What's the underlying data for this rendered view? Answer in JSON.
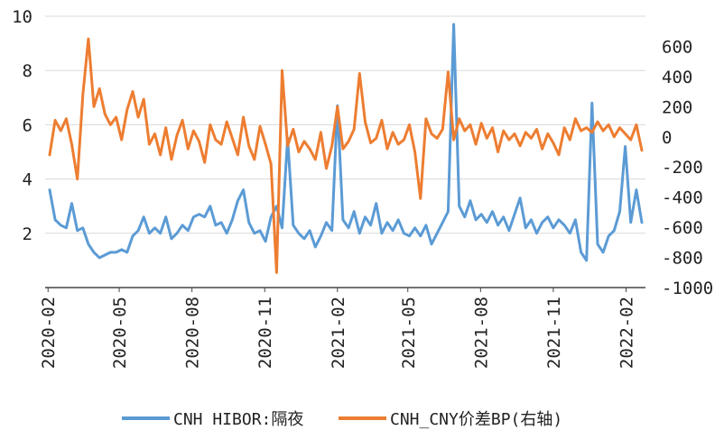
{
  "chart_data": {
    "type": "line",
    "title": "",
    "xlabel": "",
    "ylabel": "",
    "x_ticks": [
      "2020-02",
      "2020-05",
      "2020-08",
      "2020-11",
      "2021-02",
      "2021-05",
      "2021-08",
      "2021-11",
      "2022-02"
    ],
    "y_left": {
      "range": [
        0,
        10
      ],
      "ticks": [
        "10",
        "8",
        "6",
        "4",
        "2"
      ]
    },
    "y_right": {
      "range": [
        -1000,
        800
      ],
      "ticks": [
        "600",
        "400",
        "200",
        "0",
        "-200",
        "-400",
        "-600",
        "-800",
        "-1000"
      ]
    },
    "grid": true,
    "legend": "bottom",
    "series": [
      {
        "name": "CNH HIBOR:隔夜",
        "axis": "left",
        "color": "#5B9BD5",
        "values": [
          [
            "2020-02-03",
            3.6
          ],
          [
            "2020-02-10",
            2.5
          ],
          [
            "2020-02-17",
            2.3
          ],
          [
            "2020-02-24",
            2.2
          ],
          [
            "2020-03-02",
            3.1
          ],
          [
            "2020-03-09",
            2.1
          ],
          [
            "2020-03-16",
            2.2
          ],
          [
            "2020-03-23",
            1.6
          ],
          [
            "2020-03-30",
            1.3
          ],
          [
            "2020-04-06",
            1.1
          ],
          [
            "2020-04-13",
            1.2
          ],
          [
            "2020-04-20",
            1.3
          ],
          [
            "2020-04-27",
            1.3
          ],
          [
            "2020-05-04",
            1.4
          ],
          [
            "2020-05-11",
            1.3
          ],
          [
            "2020-05-18",
            1.9
          ],
          [
            "2020-05-25",
            2.1
          ],
          [
            "2020-06-01",
            2.6
          ],
          [
            "2020-06-08",
            2.0
          ],
          [
            "2020-06-15",
            2.2
          ],
          [
            "2020-06-22",
            2.0
          ],
          [
            "2020-06-29",
            2.6
          ],
          [
            "2020-07-06",
            1.8
          ],
          [
            "2020-07-13",
            2.0
          ],
          [
            "2020-07-20",
            2.3
          ],
          [
            "2020-07-27",
            2.1
          ],
          [
            "2020-08-03",
            2.6
          ],
          [
            "2020-08-10",
            2.7
          ],
          [
            "2020-08-17",
            2.6
          ],
          [
            "2020-08-24",
            3.0
          ],
          [
            "2020-08-31",
            2.3
          ],
          [
            "2020-09-07",
            2.4
          ],
          [
            "2020-09-14",
            2.0
          ],
          [
            "2020-09-21",
            2.5
          ],
          [
            "2020-09-28",
            3.2
          ],
          [
            "2020-10-05",
            3.6
          ],
          [
            "2020-10-12",
            2.4
          ],
          [
            "2020-10-19",
            2.0
          ],
          [
            "2020-10-26",
            2.1
          ],
          [
            "2020-11-02",
            1.7
          ],
          [
            "2020-11-09",
            2.6
          ],
          [
            "2020-11-16",
            3.0
          ],
          [
            "2020-11-23",
            2.2
          ],
          [
            "2020-11-30",
            5.5
          ],
          [
            "2020-12-07",
            2.3
          ],
          [
            "2020-12-14",
            2.0
          ],
          [
            "2020-12-21",
            1.8
          ],
          [
            "2020-12-28",
            2.1
          ],
          [
            "2021-01-04",
            1.5
          ],
          [
            "2021-01-11",
            1.9
          ],
          [
            "2021-01-18",
            2.4
          ],
          [
            "2021-01-25",
            2.1
          ],
          [
            "2021-02-01",
            6.7
          ],
          [
            "2021-02-08",
            2.5
          ],
          [
            "2021-02-15",
            2.2
          ],
          [
            "2021-02-22",
            2.8
          ],
          [
            "2021-03-01",
            2.0
          ],
          [
            "2021-03-08",
            2.6
          ],
          [
            "2021-03-15",
            2.3
          ],
          [
            "2021-03-22",
            3.1
          ],
          [
            "2021-03-29",
            2.0
          ],
          [
            "2021-04-05",
            2.4
          ],
          [
            "2021-04-12",
            2.1
          ],
          [
            "2021-04-19",
            2.5
          ],
          [
            "2021-04-26",
            2.0
          ],
          [
            "2021-05-03",
            1.9
          ],
          [
            "2021-05-10",
            2.2
          ],
          [
            "2021-05-17",
            1.9
          ],
          [
            "2021-05-24",
            2.3
          ],
          [
            "2021-05-31",
            1.6
          ],
          [
            "2021-06-07",
            2.0
          ],
          [
            "2021-06-14",
            2.4
          ],
          [
            "2021-06-21",
            2.8
          ],
          [
            "2021-06-28",
            9.7
          ],
          [
            "2021-07-05",
            3.0
          ],
          [
            "2021-07-12",
            2.6
          ],
          [
            "2021-07-19",
            3.2
          ],
          [
            "2021-07-26",
            2.5
          ],
          [
            "2021-08-02",
            2.7
          ],
          [
            "2021-08-09",
            2.4
          ],
          [
            "2021-08-16",
            2.8
          ],
          [
            "2021-08-23",
            2.3
          ],
          [
            "2021-08-30",
            2.6
          ],
          [
            "2021-09-06",
            2.1
          ],
          [
            "2021-09-13",
            2.7
          ],
          [
            "2021-09-20",
            3.3
          ],
          [
            "2021-09-27",
            2.2
          ],
          [
            "2021-10-04",
            2.5
          ],
          [
            "2021-10-11",
            2.0
          ],
          [
            "2021-10-18",
            2.4
          ],
          [
            "2021-10-25",
            2.6
          ],
          [
            "2021-11-01",
            2.2
          ],
          [
            "2021-11-08",
            2.5
          ],
          [
            "2021-11-15",
            2.3
          ],
          [
            "2021-11-22",
            2.0
          ],
          [
            "2021-11-29",
            2.5
          ],
          [
            "2021-12-06",
            1.3
          ],
          [
            "2021-12-13",
            1.0
          ],
          [
            "2021-12-20",
            6.8
          ],
          [
            "2021-12-27",
            1.6
          ],
          [
            "2022-01-03",
            1.3
          ],
          [
            "2022-01-10",
            1.9
          ],
          [
            "2022-01-17",
            2.1
          ],
          [
            "2022-01-24",
            2.8
          ],
          [
            "2022-01-31",
            5.2
          ],
          [
            "2022-02-07",
            2.4
          ],
          [
            "2022-02-14",
            3.6
          ],
          [
            "2022-02-21",
            2.4
          ]
        ]
      },
      {
        "name": "CNH_CNY价差BP(右轴)",
        "axis": "right",
        "color": "#ED7D31",
        "values": [
          [
            "2020-02-03",
            -120
          ],
          [
            "2020-02-10",
            110
          ],
          [
            "2020-02-17",
            40
          ],
          [
            "2020-02-24",
            120
          ],
          [
            "2020-03-02",
            -50
          ],
          [
            "2020-03-09",
            -280
          ],
          [
            "2020-03-16",
            280
          ],
          [
            "2020-03-23",
            650
          ],
          [
            "2020-03-30",
            200
          ],
          [
            "2020-04-06",
            320
          ],
          [
            "2020-04-13",
            150
          ],
          [
            "2020-04-20",
            80
          ],
          [
            "2020-04-27",
            130
          ],
          [
            "2020-05-04",
            -20
          ],
          [
            "2020-05-11",
            180
          ],
          [
            "2020-05-18",
            300
          ],
          [
            "2020-05-25",
            130
          ],
          [
            "2020-06-01",
            250
          ],
          [
            "2020-06-08",
            -50
          ],
          [
            "2020-06-15",
            20
          ],
          [
            "2020-06-22",
            -120
          ],
          [
            "2020-06-29",
            60
          ],
          [
            "2020-07-06",
            -150
          ],
          [
            "2020-07-13",
            10
          ],
          [
            "2020-07-20",
            110
          ],
          [
            "2020-07-27",
            -80
          ],
          [
            "2020-08-03",
            40
          ],
          [
            "2020-08-10",
            -30
          ],
          [
            "2020-08-17",
            -170
          ],
          [
            "2020-08-24",
            80
          ],
          [
            "2020-08-31",
            -20
          ],
          [
            "2020-09-07",
            -50
          ],
          [
            "2020-09-14",
            100
          ],
          [
            "2020-09-21",
            -10
          ],
          [
            "2020-09-28",
            -120
          ],
          [
            "2020-10-05",
            130
          ],
          [
            "2020-10-12",
            -60
          ],
          [
            "2020-10-19",
            -150
          ],
          [
            "2020-10-26",
            70
          ],
          [
            "2020-11-02",
            -50
          ],
          [
            "2020-11-09",
            -180
          ],
          [
            "2020-11-16",
            -900
          ],
          [
            "2020-11-23",
            440
          ],
          [
            "2020-11-30",
            -60
          ],
          [
            "2020-12-07",
            50
          ],
          [
            "2020-12-14",
            -100
          ],
          [
            "2020-12-21",
            -30
          ],
          [
            "2020-12-28",
            -80
          ],
          [
            "2021-01-04",
            -150
          ],
          [
            "2021-01-11",
            30
          ],
          [
            "2021-01-18",
            -210
          ],
          [
            "2021-01-25",
            -60
          ],
          [
            "2021-02-01",
            200
          ],
          [
            "2021-02-08",
            -80
          ],
          [
            "2021-02-15",
            -30
          ],
          [
            "2021-02-22",
            50
          ],
          [
            "2021-03-01",
            420
          ],
          [
            "2021-03-08",
            100
          ],
          [
            "2021-03-15",
            -40
          ],
          [
            "2021-03-22",
            -10
          ],
          [
            "2021-03-29",
            110
          ],
          [
            "2021-04-05",
            -80
          ],
          [
            "2021-04-12",
            30
          ],
          [
            "2021-04-19",
            -50
          ],
          [
            "2021-04-26",
            -20
          ],
          [
            "2021-05-03",
            80
          ],
          [
            "2021-05-10",
            -100
          ],
          [
            "2021-05-17",
            -410
          ],
          [
            "2021-05-24",
            120
          ],
          [
            "2021-05-31",
            20
          ],
          [
            "2021-06-07",
            -10
          ],
          [
            "2021-06-14",
            50
          ],
          [
            "2021-06-21",
            430
          ],
          [
            "2021-06-28",
            -20
          ],
          [
            "2021-07-05",
            120
          ],
          [
            "2021-07-12",
            40
          ],
          [
            "2021-07-19",
            80
          ],
          [
            "2021-07-26",
            -50
          ],
          [
            "2021-08-02",
            90
          ],
          [
            "2021-08-09",
            -10
          ],
          [
            "2021-08-16",
            60
          ],
          [
            "2021-08-23",
            -100
          ],
          [
            "2021-08-30",
            40
          ],
          [
            "2021-09-06",
            -20
          ],
          [
            "2021-09-13",
            20
          ],
          [
            "2021-09-20",
            -60
          ],
          [
            "2021-09-27",
            30
          ],
          [
            "2021-10-04",
            -10
          ],
          [
            "2021-10-11",
            50
          ],
          [
            "2021-10-18",
            -80
          ],
          [
            "2021-10-25",
            20
          ],
          [
            "2021-11-01",
            -40
          ],
          [
            "2021-11-08",
            -120
          ],
          [
            "2021-11-15",
            60
          ],
          [
            "2021-11-22",
            -20
          ],
          [
            "2021-11-29",
            120
          ],
          [
            "2021-12-06",
            40
          ],
          [
            "2021-12-13",
            60
          ],
          [
            "2021-12-20",
            30
          ],
          [
            "2021-12-27",
            100
          ],
          [
            "2022-01-03",
            40
          ],
          [
            "2022-01-10",
            80
          ],
          [
            "2022-01-17",
            0
          ],
          [
            "2022-01-24",
            60
          ],
          [
            "2022-01-31",
            20
          ],
          [
            "2022-02-07",
            -20
          ],
          [
            "2022-02-14",
            80
          ],
          [
            "2022-02-21",
            -90
          ]
        ]
      }
    ]
  }
}
